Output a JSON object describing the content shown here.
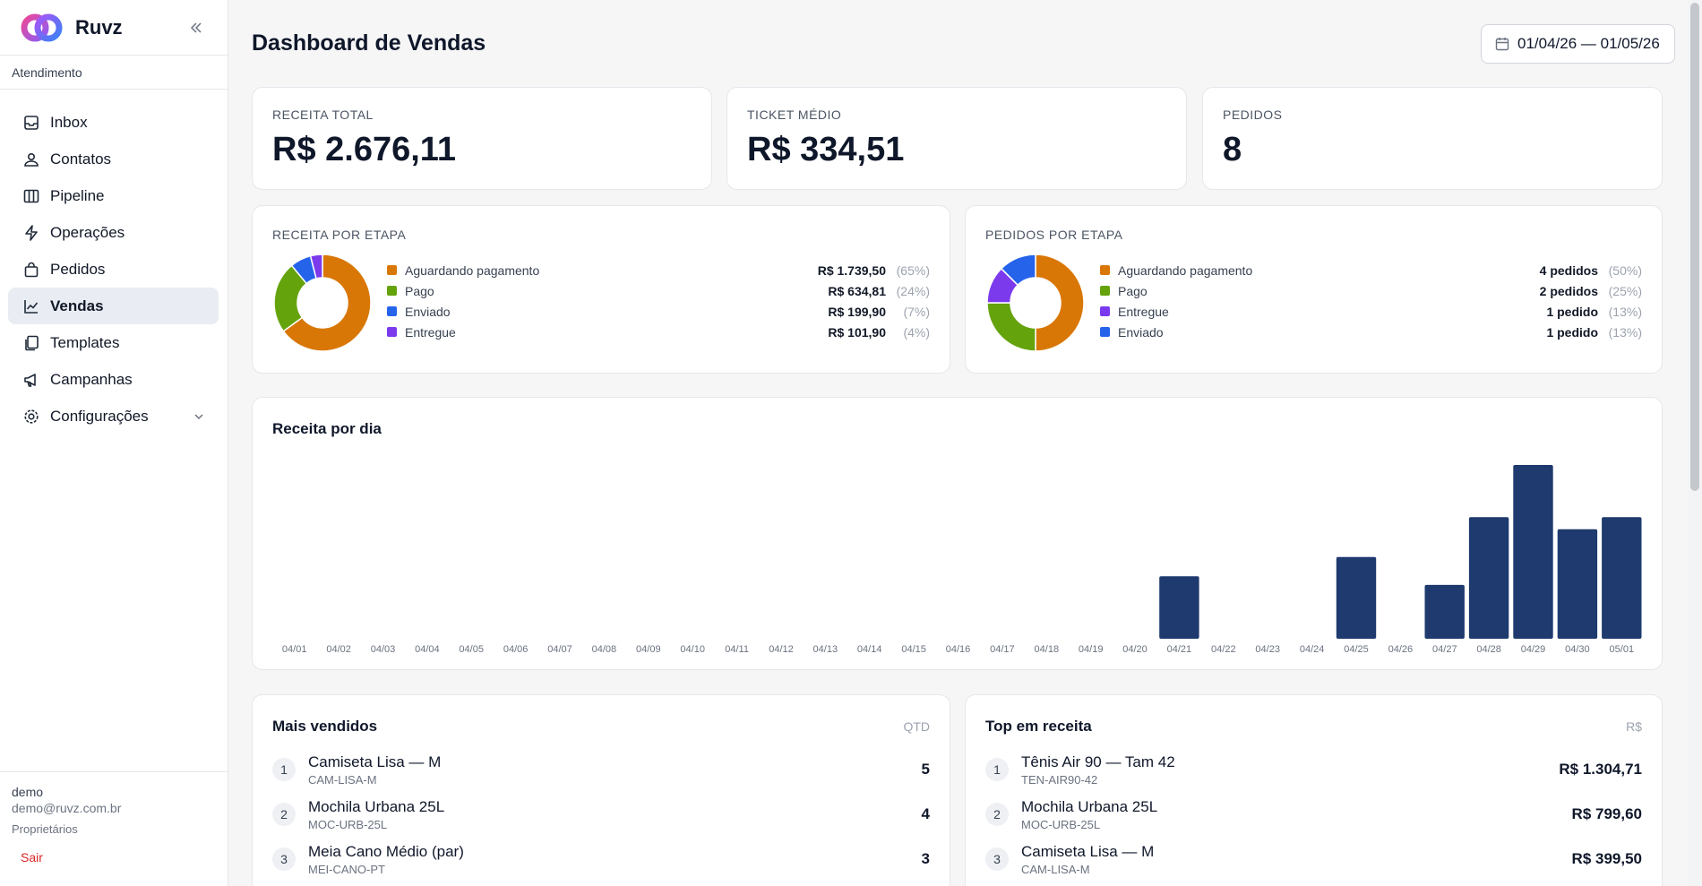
{
  "app": {
    "name": "Ruvz"
  },
  "sidebar": {
    "section": "Atendimento",
    "items": [
      {
        "label": "Inbox",
        "icon": "inbox-icon"
      },
      {
        "label": "Contatos",
        "icon": "contacts-icon"
      },
      {
        "label": "Pipeline",
        "icon": "pipeline-icon"
      },
      {
        "label": "Operações",
        "icon": "lightning-icon"
      },
      {
        "label": "Pedidos",
        "icon": "bag-icon"
      },
      {
        "label": "Vendas",
        "icon": "chart-line-icon"
      },
      {
        "label": "Templates",
        "icon": "templates-icon"
      },
      {
        "label": "Campanhas",
        "icon": "megaphone-icon"
      },
      {
        "label": "Configurações",
        "icon": "gear-icon"
      }
    ],
    "active": "Vendas",
    "user": {
      "name": "demo",
      "email": "demo@ruvz.com.br",
      "role": "Proprietários"
    },
    "logout": "Sair"
  },
  "header": {
    "title": "Dashboard de Vendas",
    "date_range": "01/04/26 — 01/05/26"
  },
  "stats": [
    {
      "label": "RECEITA TOTAL",
      "value": "R$ 2.676,11"
    },
    {
      "label": "TICKET MÉDIO",
      "value": "R$ 334,51"
    },
    {
      "label": "PEDIDOS",
      "value": "8"
    }
  ],
  "revenue_by_stage": {
    "label": "RECEITA POR ETAPA",
    "rows": [
      {
        "name": "Aguardando pagamento",
        "value": "R$ 1.739,50",
        "pct": "(65%)",
        "fraction": 0.65,
        "color": "#d97706"
      },
      {
        "name": "Pago",
        "value": "R$ 634,81",
        "pct": "(24%)",
        "fraction": 0.24,
        "color": "#65a30d"
      },
      {
        "name": "Enviado",
        "value": "R$ 199,90",
        "pct": "(7%)",
        "fraction": 0.07,
        "color": "#2563eb"
      },
      {
        "name": "Entregue",
        "value": "R$ 101,90",
        "pct": "(4%)",
        "fraction": 0.04,
        "color": "#7c3aed"
      }
    ]
  },
  "orders_by_stage": {
    "label": "PEDIDOS POR ETAPA",
    "rows": [
      {
        "name": "Aguardando pagamento",
        "value": "4 pedidos",
        "pct": "(50%)",
        "fraction": 0.5,
        "color": "#d97706"
      },
      {
        "name": "Pago",
        "value": "2 pedidos",
        "pct": "(25%)",
        "fraction": 0.25,
        "color": "#65a30d"
      },
      {
        "name": "Entregue",
        "value": "1 pedido",
        "pct": "(13%)",
        "fraction": 0.125,
        "color": "#7c3aed"
      },
      {
        "name": "Enviado",
        "value": "1 pedido",
        "pct": "(13%)",
        "fraction": 0.125,
        "color": "#2563eb"
      }
    ]
  },
  "chart_data": {
    "type": "bar",
    "title": "Receita por dia",
    "categories": [
      "04/01",
      "04/02",
      "04/03",
      "04/04",
      "04/05",
      "04/06",
      "04/07",
      "04/08",
      "04/09",
      "04/10",
      "04/11",
      "04/12",
      "04/13",
      "04/14",
      "04/15",
      "04/16",
      "04/17",
      "04/18",
      "04/19",
      "04/20",
      "04/21",
      "04/22",
      "04/23",
      "04/24",
      "04/25",
      "04/26",
      "04/27",
      "04/28",
      "04/29",
      "04/30",
      "05/01"
    ],
    "values": [
      0,
      0,
      0,
      0,
      0,
      0,
      0,
      0,
      0,
      0,
      0,
      0,
      0,
      0,
      0,
      0,
      0,
      0,
      0,
      0,
      0.36,
      0,
      0,
      0,
      0.47,
      0,
      0.31,
      0.7,
      1.0,
      0.63,
      0.7
    ],
    "color": "#1e3a6e",
    "ylim": [
      0,
      1
    ]
  },
  "top_sellers": {
    "title": "Mais vendidos",
    "column": "QTD",
    "items": [
      {
        "rank": "1",
        "name": "Camiseta Lisa — M",
        "sku": "CAM-LISA-M",
        "value": "5"
      },
      {
        "rank": "2",
        "name": "Mochila Urbana 25L",
        "sku": "MOC-URB-25L",
        "value": "4"
      },
      {
        "rank": "3",
        "name": "Meia Cano Médio (par)",
        "sku": "MEI-CANO-PT",
        "value": "3"
      }
    ]
  },
  "top_revenue": {
    "title": "Top em receita",
    "column": "R$",
    "items": [
      {
        "rank": "1",
        "name": "Tênis Air 90 — Tam 42",
        "sku": "TEN-AIR90-42",
        "value": "R$ 1.304,71"
      },
      {
        "rank": "2",
        "name": "Mochila Urbana 25L",
        "sku": "MOC-URB-25L",
        "value": "R$ 799,60"
      },
      {
        "rank": "3",
        "name": "Camiseta Lisa — M",
        "sku": "CAM-LISA-M",
        "value": "R$ 399,50"
      }
    ]
  }
}
